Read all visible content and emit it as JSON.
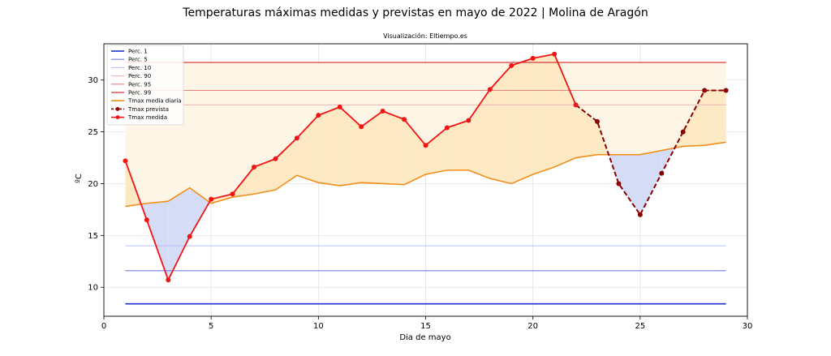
{
  "chart_data": {
    "type": "line",
    "title": "Temperaturas máximas medidas y previstas en mayo de 2022 | Molina de Aragón",
    "subtitle": "Visualización: Eltiempo.es",
    "xlabel": "Dia de mayo",
    "ylabel": "ºC",
    "xlim": [
      0,
      30
    ],
    "ylim": [
      7.2,
      33.5
    ],
    "x_ticks": [
      0,
      5,
      10,
      15,
      20,
      25,
      30
    ],
    "y_ticks": [
      10,
      15,
      20,
      25,
      30
    ],
    "grid": true,
    "legend_position": "top-left",
    "percentiles": [
      {
        "name": "Perc. 1",
        "value": 8.4,
        "color": "#1f2fd6",
        "width": 1.6
      },
      {
        "name": "Perc. 5",
        "value": 11.6,
        "color": "#6f80ea",
        "width": 1.1
      },
      {
        "name": "Perc. 10",
        "value": 14.0,
        "color": "#b7c0f3",
        "width": 1.1
      },
      {
        "name": "Perc. 90",
        "value": 27.6,
        "color": "#f4b3b3",
        "width": 1.1
      },
      {
        "name": "Perc. 95",
        "value": 29.0,
        "color": "#ec7f7f",
        "width": 1.1
      },
      {
        "name": "Perc. 99",
        "value": 31.7,
        "color": "#d93b3b",
        "width": 1.3
      }
    ],
    "percentile_x_range": [
      1,
      29
    ],
    "series": [
      {
        "name": "Tmax media diaria",
        "color": "#f28e1c",
        "x": [
          1,
          2,
          3,
          4,
          5,
          6,
          7,
          8,
          9,
          10,
          11,
          12,
          13,
          14,
          15,
          16,
          17,
          18,
          19,
          20,
          21,
          22,
          23,
          24,
          25,
          26,
          27,
          28,
          29
        ],
        "values": [
          17.8,
          18.1,
          18.3,
          19.6,
          18.1,
          18.7,
          19.0,
          19.4,
          20.8,
          20.1,
          19.8,
          20.1,
          20.0,
          19.9,
          20.9,
          21.3,
          21.3,
          20.5,
          20.0,
          20.9,
          21.6,
          22.5,
          22.8,
          22.8,
          22.8,
          23.2,
          23.6,
          23.7,
          24.0
        ]
      },
      {
        "name": "Tmax prevista",
        "color": "#8b0000",
        "style": "dashed",
        "x": [
          22,
          23,
          24,
          25,
          26,
          27,
          28,
          29
        ],
        "values": [
          27.6,
          26.0,
          20.0,
          17.0,
          21.0,
          25.0,
          29.0,
          29.0
        ]
      },
      {
        "name": "Tmax medida",
        "color": "#f21414",
        "x": [
          1,
          2,
          3,
          4,
          5,
          6,
          7,
          8,
          9,
          10,
          11,
          12,
          13,
          14,
          15,
          16,
          17,
          18,
          19,
          20,
          21,
          22
        ],
        "values": [
          22.2,
          16.5,
          10.7,
          14.9,
          18.5,
          19.0,
          21.6,
          22.4,
          24.4,
          26.6,
          27.4,
          25.5,
          27.0,
          26.2,
          23.7,
          25.4,
          26.1,
          29.1,
          31.4,
          32.1,
          32.5,
          27.6
        ]
      }
    ],
    "fill_colors": {
      "above_mean": "#fde9c4",
      "below_mean": "#d5dcf6",
      "background_band": "#fdf6e7"
    },
    "legend": [
      "Perc. 1",
      "Perc. 5",
      "Perc. 10",
      "Perc. 90",
      "Perc. 95",
      "Perc. 99",
      "Tmax media diaria",
      "Tmax prevista",
      "Tmax medida"
    ]
  }
}
